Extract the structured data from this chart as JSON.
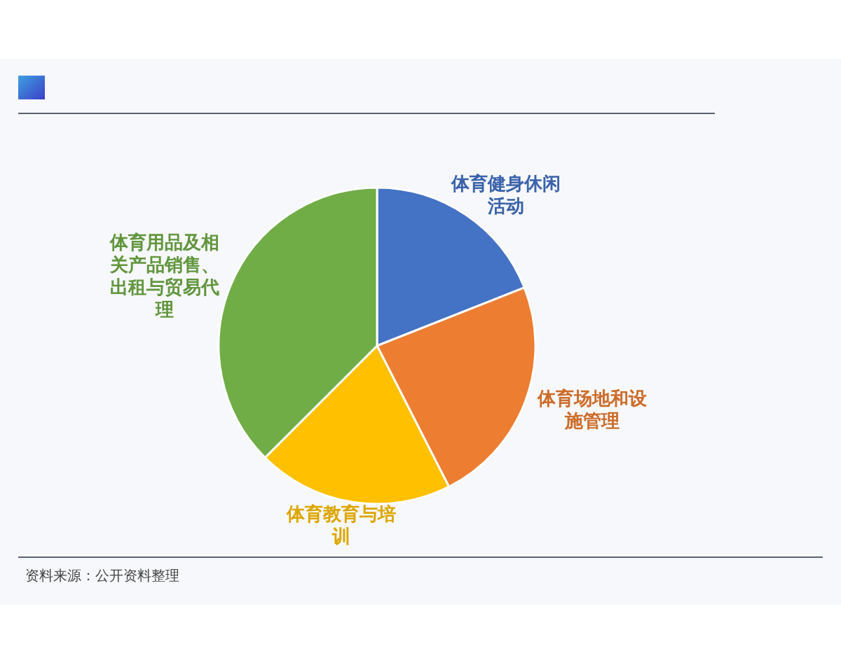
{
  "chart_data": {
    "type": "pie",
    "categories": [
      "体育健身休闲活动",
      "体育场地和设施管理",
      "体育教育与培训",
      "体育用品及相关产品销售、出租与贸易代理"
    ],
    "values": [
      19,
      23.5,
      20,
      37.5
    ],
    "colors": [
      "#4472c4",
      "#ed7d31",
      "#ffc000",
      "#70ad47"
    ],
    "annotations": [
      "资料来源：公开资料整理"
    ]
  }
}
